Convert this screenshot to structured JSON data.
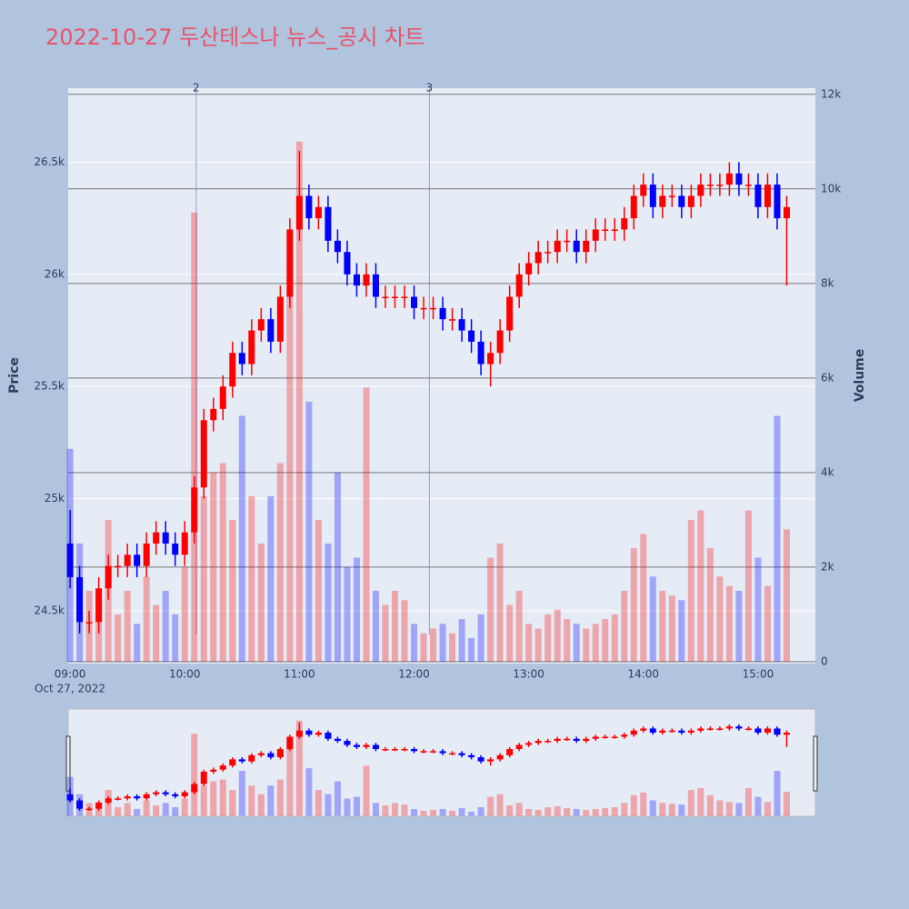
{
  "chart_data": {
    "type": "candlestick",
    "title": "2022-10-27 두산테스나 뉴스_공시 차트",
    "y_title": "Price",
    "y2_title": "Volume",
    "x_date_label": "Oct 27, 2022",
    "increasing_color": "#ff0000",
    "decreasing_color": "#0000ff",
    "x": [
      "09:00",
      "09:05",
      "09:10",
      "09:15",
      "09:20",
      "09:25",
      "09:30",
      "09:35",
      "09:40",
      "09:45",
      "09:50",
      "09:55",
      "10:00",
      "10:05",
      "10:10",
      "10:15",
      "10:20",
      "10:25",
      "10:30",
      "10:35",
      "10:40",
      "10:45",
      "10:50",
      "10:55",
      "11:00",
      "11:05",
      "11:10",
      "11:15",
      "11:20",
      "11:25",
      "11:30",
      "11:35",
      "11:40",
      "11:45",
      "11:50",
      "11:55",
      "12:00",
      "12:05",
      "12:10",
      "12:15",
      "12:20",
      "12:25",
      "12:30",
      "12:35",
      "12:40",
      "12:45",
      "12:50",
      "12:55",
      "13:00",
      "13:05",
      "13:10",
      "13:15",
      "13:20",
      "13:25",
      "13:30",
      "13:35",
      "13:40",
      "13:45",
      "13:50",
      "13:55",
      "14:00",
      "14:05",
      "14:10",
      "14:15",
      "14:20",
      "14:25",
      "14:30",
      "14:35",
      "14:40",
      "14:45",
      "14:50",
      "14:55",
      "15:00",
      "15:05",
      "15:10",
      "15:15"
    ],
    "open": [
      24800,
      24650,
      24450,
      24450,
      24600,
      24700,
      24700,
      24750,
      24700,
      24800,
      24850,
      24800,
      24750,
      24850,
      25050,
      25350,
      25400,
      25500,
      25650,
      25600,
      25750,
      25800,
      25700,
      25900,
      26200,
      26350,
      26250,
      26300,
      26150,
      26100,
      26000,
      25950,
      26000,
      25900,
      25900,
      25900,
      25900,
      25850,
      25850,
      25850,
      25800,
      25800,
      25750,
      25700,
      25600,
      25650,
      25750,
      25900,
      26000,
      26050,
      26100,
      26100,
      26150,
      26150,
      26100,
      26150,
      26200,
      26200,
      26200,
      26250,
      26350,
      26400,
      26300,
      26350,
      26350,
      26300,
      26350,
      26400,
      26400,
      26400,
      26450,
      26400,
      26400,
      26300,
      26400,
      26250
    ],
    "high": [
      24950,
      24700,
      24500,
      24650,
      24750,
      24750,
      24800,
      24800,
      24850,
      24900,
      24900,
      24850,
      24900,
      25100,
      25400,
      25450,
      25550,
      25700,
      25700,
      25800,
      25850,
      25850,
      25950,
      26250,
      26550,
      26400,
      26350,
      26350,
      26200,
      26150,
      26050,
      26050,
      26050,
      25950,
      25950,
      25950,
      25950,
      25900,
      25900,
      25900,
      25850,
      25850,
      25800,
      25750,
      25700,
      25800,
      25950,
      26050,
      26100,
      26150,
      26150,
      26200,
      26200,
      26200,
      26200,
      26250,
      26250,
      26250,
      26300,
      26400,
      26450,
      26450,
      26400,
      26400,
      26400,
      26400,
      26450,
      26450,
      26450,
      26500,
      26500,
      26450,
      26450,
      26450,
      26450,
      26350
    ],
    "low": [
      24600,
      24400,
      24400,
      24400,
      24550,
      24650,
      24650,
      24650,
      24650,
      24750,
      24750,
      24700,
      24700,
      24800,
      25000,
      25300,
      25350,
      25450,
      25550,
      25550,
      25700,
      25650,
      25650,
      25850,
      26150,
      26200,
      26200,
      26100,
      26050,
      25950,
      25900,
      25900,
      25850,
      25850,
      25850,
      25850,
      25800,
      25800,
      25800,
      25750,
      25750,
      25700,
      25650,
      25550,
      25500,
      25600,
      25700,
      25850,
      25950,
      26000,
      26050,
      26050,
      26100,
      26050,
      26050,
      26100,
      26150,
      26150,
      26150,
      26200,
      26300,
      26250,
      26250,
      26300,
      26250,
      26250,
      26300,
      26350,
      26350,
      26350,
      26350,
      26350,
      26250,
      26250,
      26200,
      25950
    ],
    "close": [
      24650,
      24450,
      24450,
      24600,
      24700,
      24700,
      24750,
      24700,
      24800,
      24850,
      24800,
      24750,
      24850,
      25050,
      25350,
      25400,
      25500,
      25650,
      25600,
      25750,
      25800,
      25700,
      25900,
      26200,
      26350,
      26250,
      26300,
      26150,
      26100,
      26000,
      25950,
      26000,
      25900,
      25900,
      25900,
      25900,
      25850,
      25850,
      25850,
      25800,
      25800,
      25750,
      25700,
      25600,
      25650,
      25750,
      25900,
      26000,
      26050,
      26100,
      26100,
      26150,
      26150,
      26100,
      26150,
      26200,
      26200,
      26200,
      26250,
      26350,
      26400,
      26300,
      26350,
      26350,
      26300,
      26350,
      26400,
      26400,
      26400,
      26450,
      26400,
      26400,
      26300,
      26400,
      26250,
      26300
    ],
    "volume": [
      4500,
      2500,
      1500,
      1200,
      3000,
      1000,
      1500,
      800,
      1800,
      1200,
      1500,
      1000,
      2000,
      9500,
      3500,
      4000,
      4200,
      3000,
      5200,
      3500,
      2500,
      3500,
      4200,
      8500,
      11000,
      5500,
      3000,
      2500,
      4000,
      2000,
      2200,
      5800,
      1500,
      1200,
      1500,
      1300,
      800,
      600,
      700,
      800,
      600,
      900,
      500,
      1000,
      2200,
      2500,
      1200,
      1500,
      800,
      700,
      1000,
      1100,
      900,
      800,
      700,
      800,
      900,
      1000,
      1500,
      2400,
      2700,
      1800,
      1500,
      1400,
      1300,
      3000,
      3200,
      2400,
      1800,
      1600,
      1500,
      3200,
      2200,
      1600,
      5200,
      2800
    ],
    "xlim": [
      "08:59",
      "15:30"
    ],
    "xticks": [
      "09:00",
      "10:00",
      "11:00",
      "12:00",
      "13:00",
      "14:00",
      "15:00"
    ],
    "ylim": [
      24265,
      26830
    ],
    "yticks": [
      {
        "value": 24500,
        "label": "24.5k"
      },
      {
        "value": 25000,
        "label": "25k"
      },
      {
        "value": 25500,
        "label": "25.5k"
      },
      {
        "value": 26000,
        "label": "26k"
      },
      {
        "value": 26500,
        "label": "26.5k"
      }
    ],
    "y2lim": [
      -40,
      12130
    ],
    "y2ticks": [
      0,
      {
        "value": 2000,
        "label": "2k"
      },
      {
        "value": 4000,
        "label": "4k"
      },
      {
        "value": 6000,
        "label": "6k"
      },
      {
        "value": 8000,
        "label": "8k"
      },
      {
        "value": 10000,
        "label": "10k"
      },
      {
        "value": 12000,
        "label": "12k"
      }
    ],
    "annotations": [
      {
        "x": "10:06",
        "text": "2"
      },
      {
        "x": "12:08",
        "text": "3"
      }
    ]
  }
}
